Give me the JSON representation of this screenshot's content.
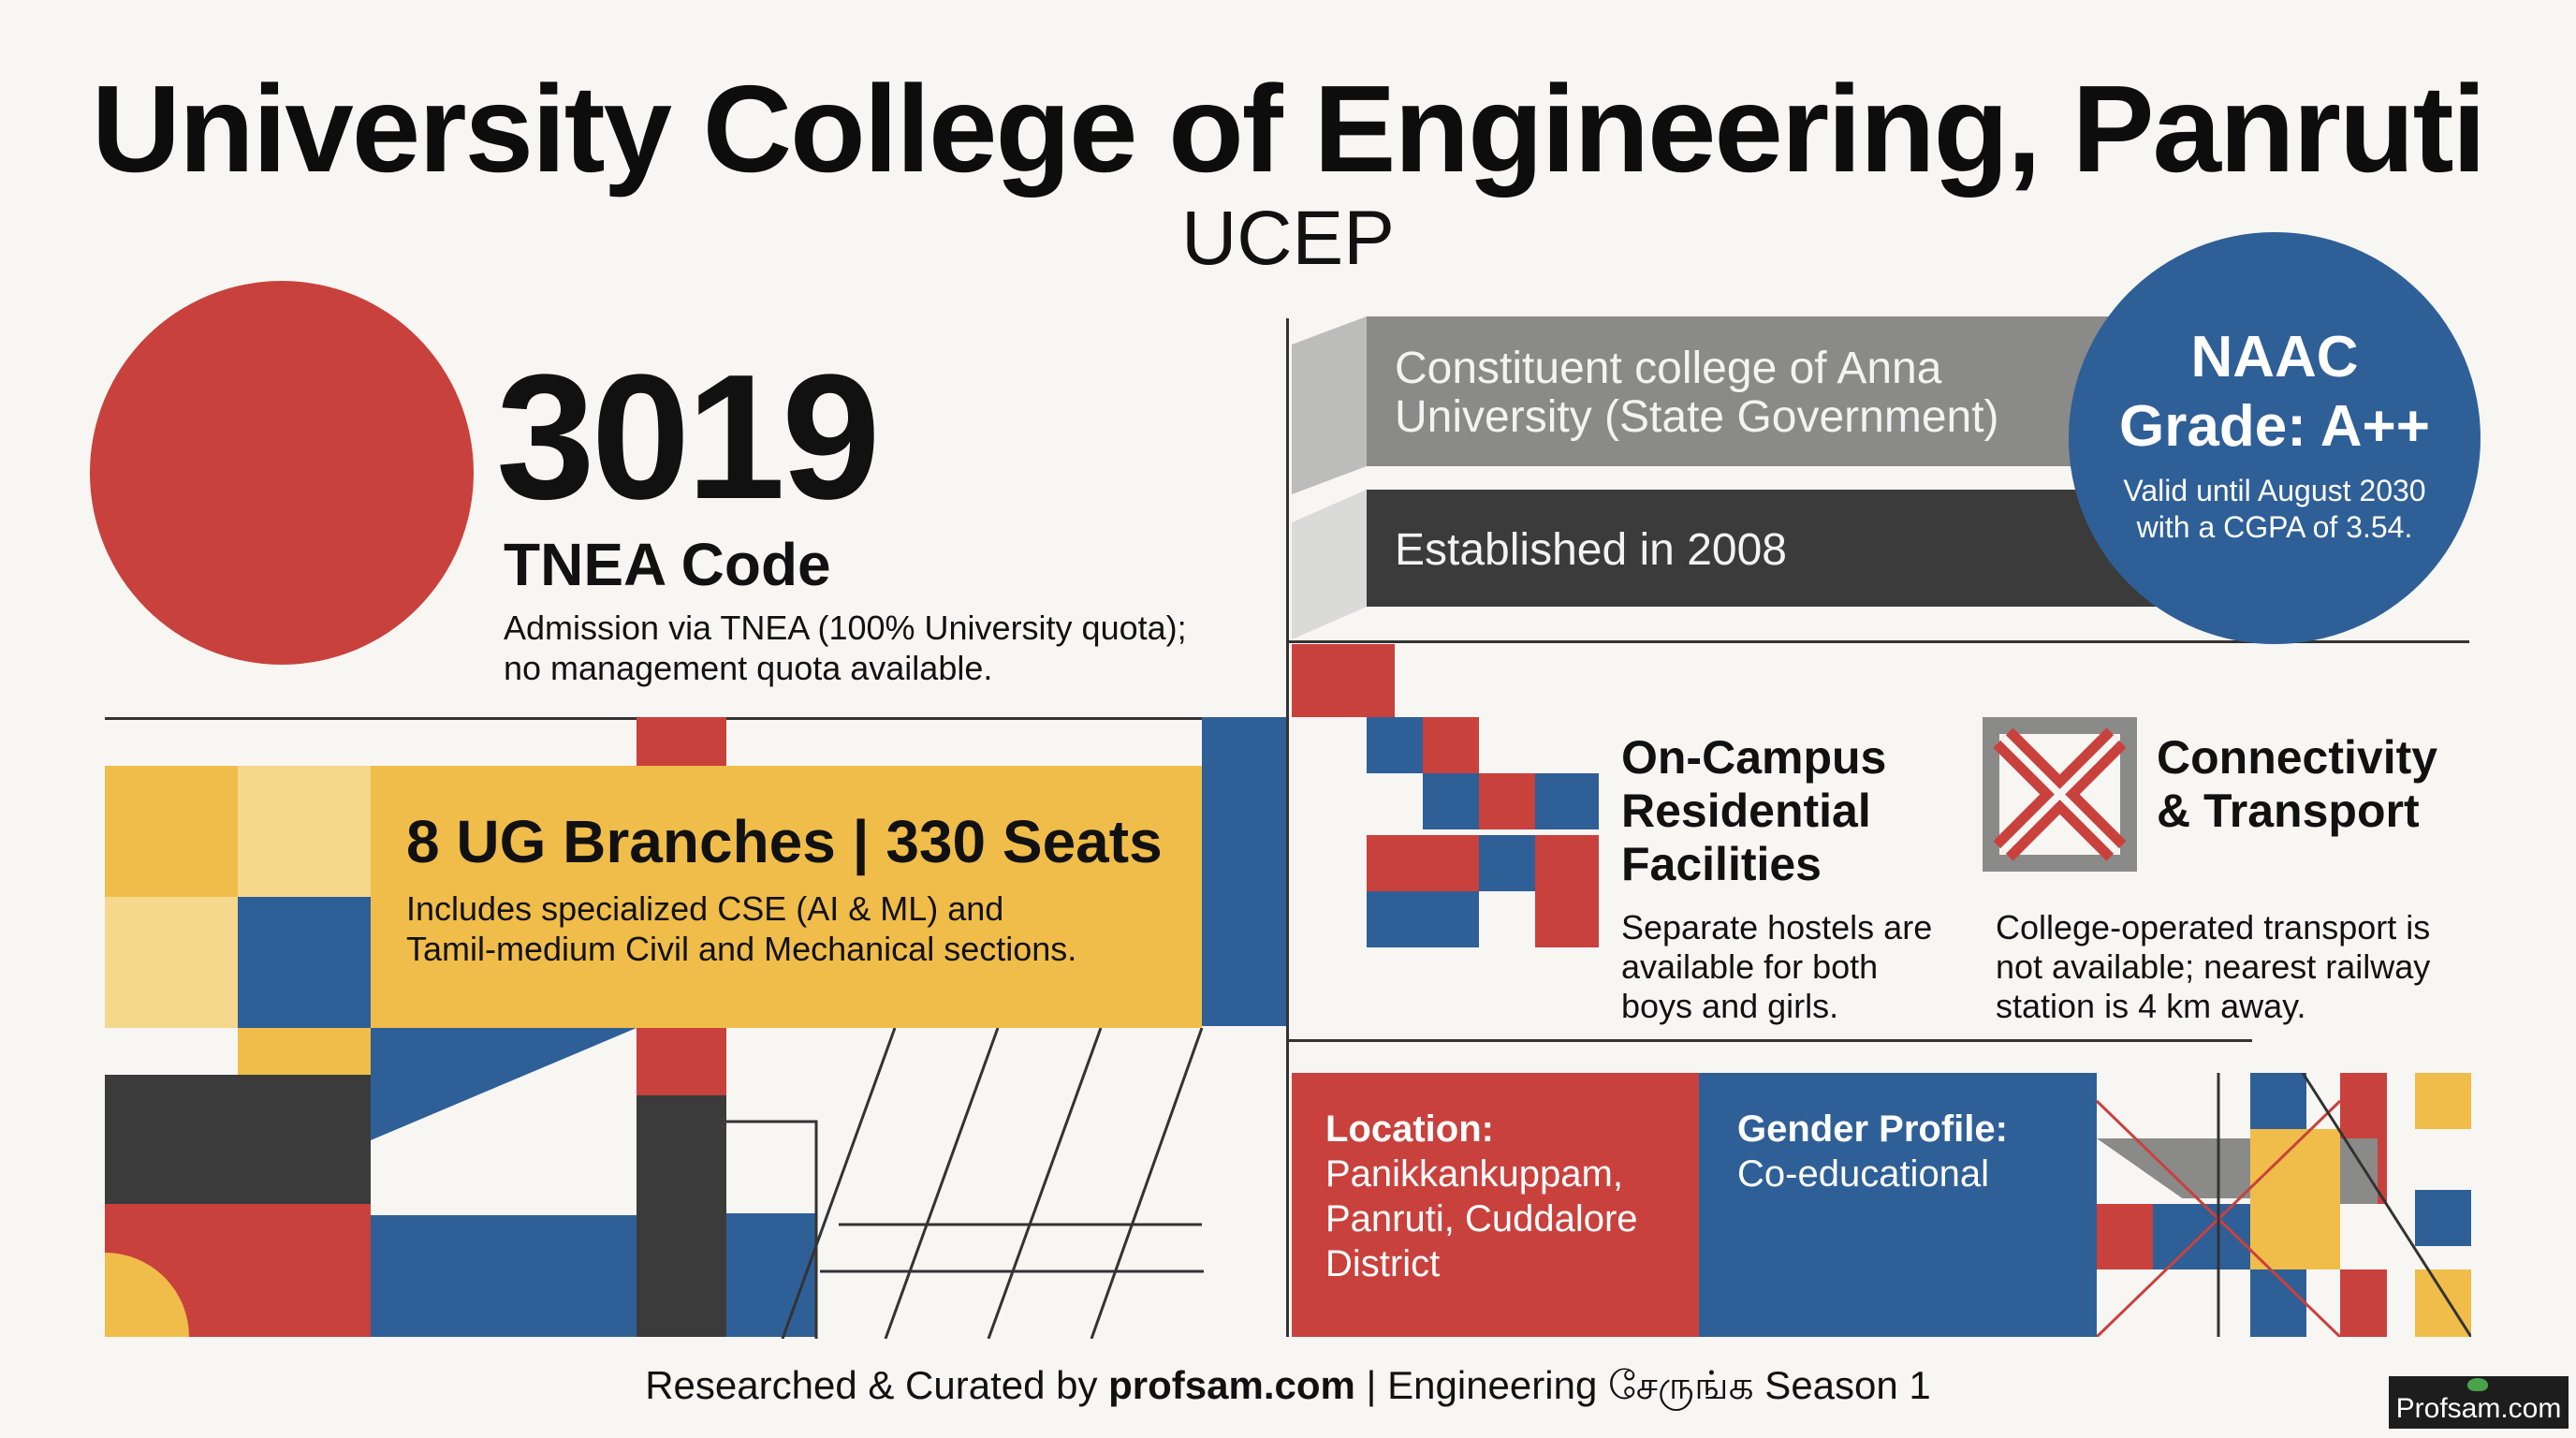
{
  "header": {
    "title": "University College of Engineering, Panruti",
    "subtitle": "UCEP"
  },
  "tnea": {
    "code": "3019",
    "label": "TNEA Code",
    "note_line1": "Admission via TNEA (100% University quota);",
    "note_line2": "no management quota available."
  },
  "affiliation": {
    "line1": "Constituent college of Anna",
    "line2": "University (State Government)",
    "established": "Established in 2008"
  },
  "naac": {
    "line1": "NAAC",
    "line2": "Grade: A++",
    "valid_line1": "Valid until August 2030",
    "valid_line2": "with a CGPA of 3.54."
  },
  "branches": {
    "headline": "8 UG Branches | 330 Seats",
    "desc_line1": "Includes specialized CSE (AI & ML) and",
    "desc_line2": "Tamil-medium Civil and Mechanical sections."
  },
  "hostel": {
    "title_line1": "On-Campus",
    "title_line2": "Residential",
    "title_line3": "Facilities",
    "desc_line1": "Separate hostels are",
    "desc_line2": "available for both",
    "desc_line3": "boys and girls."
  },
  "transport": {
    "title_line1": "Connectivity",
    "title_line2": "& Transport",
    "desc_line1": "College-operated transport is",
    "desc_line2": "not available; nearest railway",
    "desc_line3": "station is 4 km away."
  },
  "location": {
    "label": "Location:",
    "line1": "Panikkankuppam,",
    "line2": "Panruti, Cuddalore",
    "line3": "District"
  },
  "gender": {
    "label": "Gender Profile:",
    "value": "Co-educational"
  },
  "footer": {
    "prefix": "Researched & Curated by ",
    "site": "profsam.com",
    "suffix": " | Engineering சேருங்க Season 1",
    "badge": "Profsam.com"
  },
  "colors": {
    "red": "#c9413d",
    "blue": "#2f5f97",
    "yellow": "#f0bd4a",
    "dark": "#3b3b3b",
    "grey": "#8a8a89"
  }
}
